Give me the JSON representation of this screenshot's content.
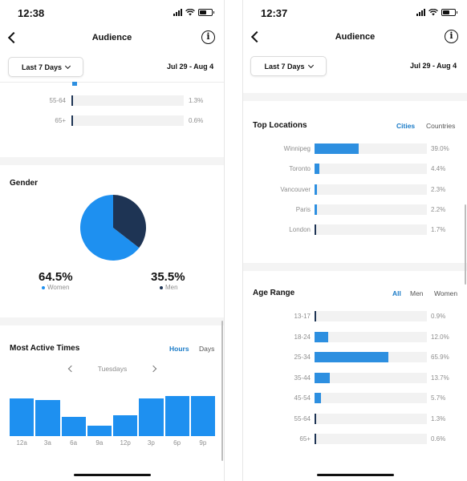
{
  "left": {
    "status_time": "12:38",
    "nav_title": "Audience",
    "range_dropdown": "Last 7 Days",
    "date_range": "Jul 29 - Aug 4",
    "top_age_rows": [
      {
        "label": "55-64",
        "value": "1.3%",
        "pct": 1.3
      },
      {
        "label": "65+",
        "value": "0.6%",
        "pct": 0.6
      }
    ],
    "gender": {
      "title": "Gender",
      "women_pct": "64.5%",
      "women_label": "Women",
      "men_pct": "35.5%",
      "men_label": "Men",
      "women_share": 64.5,
      "men_share": 35.5,
      "women_color": "#1e90f0",
      "men_color": "#1e3454"
    },
    "active_times": {
      "title": "Most Active Times",
      "tab_hours": "Hours",
      "tab_days": "Days",
      "day_label": "Tuesdays",
      "chart_data": {
        "type": "bar",
        "categories": [
          "12a",
          "3a",
          "6a",
          "9a",
          "12p",
          "3p",
          "6p",
          "9p"
        ],
        "values": [
          50,
          48,
          26,
          14,
          28,
          50,
          54,
          54
        ],
        "ylim": [
          0,
          60
        ]
      }
    }
  },
  "right": {
    "status_time": "12:37",
    "nav_title": "Audience",
    "range_dropdown": "Last 7 Days",
    "date_range": "Jul 29 - Aug 4",
    "locations": {
      "title": "Top Locations",
      "tab_cities": "Cities",
      "tab_countries": "Countries",
      "rows": [
        {
          "label": "Winnipeg",
          "value": "39.0%",
          "pct": 39.0
        },
        {
          "label": "Toronto",
          "value": "4.4%",
          "pct": 4.4
        },
        {
          "label": "Vancouver",
          "value": "2.3%",
          "pct": 2.3
        },
        {
          "label": "Paris",
          "value": "2.2%",
          "pct": 2.2
        },
        {
          "label": "London",
          "value": "1.7%",
          "pct": 1.7
        }
      ]
    },
    "age_range": {
      "title": "Age Range",
      "tab_all": "All",
      "tab_men": "Men",
      "tab_women": "Women",
      "rows": [
        {
          "label": "13-17",
          "value": "0.9%",
          "pct": 0.9
        },
        {
          "label": "18-24",
          "value": "12.0%",
          "pct": 12.0
        },
        {
          "label": "25-34",
          "value": "65.9%",
          "pct": 65.9
        },
        {
          "label": "35-44",
          "value": "13.7%",
          "pct": 13.7
        },
        {
          "label": "45-54",
          "value": "5.7%",
          "pct": 5.7
        },
        {
          "label": "55-64",
          "value": "1.3%",
          "pct": 1.3
        },
        {
          "label": "65+",
          "value": "0.6%",
          "pct": 0.6
        }
      ]
    }
  }
}
